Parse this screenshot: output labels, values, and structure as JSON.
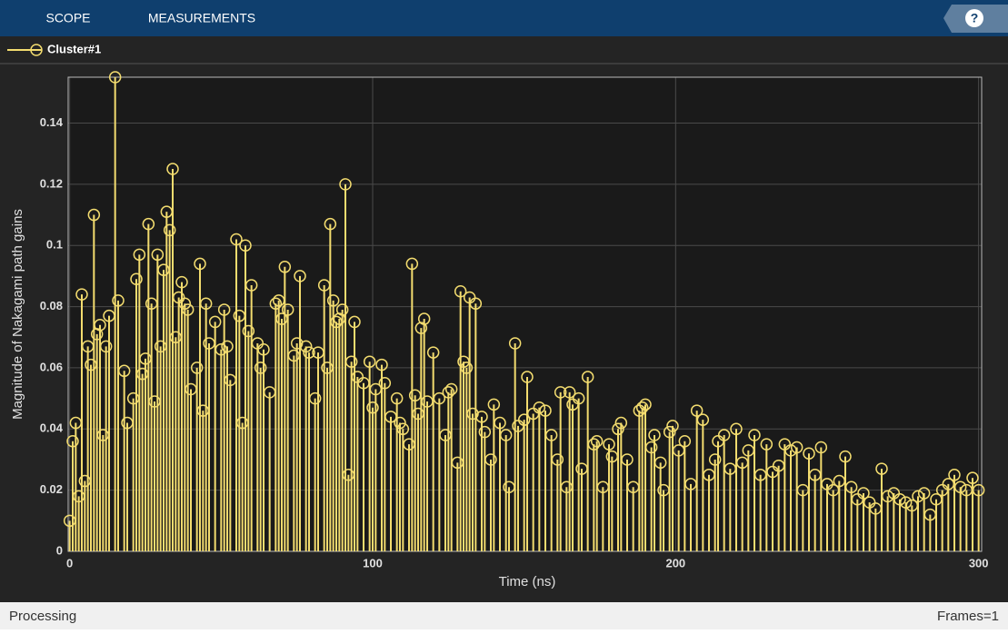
{
  "ui": {
    "tabs": [
      "SCOPE",
      "MEASUREMENTS"
    ],
    "help": "?",
    "status": "Processing",
    "frames": "Frames=1"
  },
  "chart_data": {
    "type": "stem",
    "xlabel": "Time (ns)",
    "ylabel": "Magnitude of Nakagami path gains",
    "xlim": [
      -0.5,
      301
    ],
    "ylim": [
      0,
      0.155
    ],
    "xticks": [
      0,
      100,
      200,
      300
    ],
    "yticks": [
      0,
      0.02,
      0.04,
      0.06,
      0.08,
      0.1,
      0.12,
      0.14
    ],
    "grid": true,
    "legend": "top-left",
    "x": [
      0,
      1,
      2,
      3,
      4,
      5,
      6,
      7,
      8,
      9,
      10,
      11,
      12,
      13,
      15,
      16,
      18,
      19,
      21,
      22,
      23,
      24,
      25,
      26,
      27,
      28,
      29,
      30,
      31,
      32,
      33,
      34,
      35,
      36,
      37,
      38,
      39,
      40,
      42,
      43,
      44,
      45,
      46,
      48,
      50,
      51,
      52,
      53,
      55,
      56,
      57,
      58,
      59,
      60,
      62,
      63,
      64,
      66,
      68,
      69,
      70,
      71,
      72,
      74,
      75,
      76,
      78,
      79,
      81,
      82,
      84,
      85,
      86,
      87,
      88,
      89,
      90,
      91,
      92,
      93,
      94,
      95,
      97,
      99,
      100,
      101,
      103,
      104,
      106,
      108,
      109,
      110,
      112,
      113,
      114,
      115,
      116,
      117,
      118,
      120,
      122,
      124,
      125,
      126,
      128,
      129,
      130,
      131,
      132,
      133,
      134,
      136,
      137,
      139,
      140,
      142,
      144,
      145,
      147,
      148,
      150,
      151,
      153,
      155,
      157,
      159,
      161,
      162,
      164,
      165,
      166,
      168,
      169,
      171,
      173,
      174,
      176,
      178,
      179,
      181,
      182,
      184,
      186,
      188,
      189,
      190,
      192,
      193,
      195,
      196,
      198,
      199,
      201,
      203,
      205,
      207,
      209,
      211,
      213,
      214,
      216,
      218,
      220,
      222,
      224,
      226,
      228,
      230,
      232,
      234,
      236,
      238,
      240,
      242,
      244,
      246,
      248,
      250,
      252,
      254,
      256,
      258,
      260,
      262,
      264,
      266,
      268,
      270,
      272,
      274,
      276,
      278,
      280,
      282,
      284,
      286,
      288,
      290,
      292,
      294,
      296,
      298,
      300
    ],
    "series": [
      {
        "name": "Cluster#1",
        "color": "#f3dc6f",
        "values": [
          0.01,
          0.036,
          0.042,
          0.018,
          0.084,
          0.023,
          0.067,
          0.061,
          0.11,
          0.071,
          0.074,
          0.038,
          0.067,
          0.077,
          0.155,
          0.082,
          0.059,
          0.042,
          0.05,
          0.089,
          0.097,
          0.058,
          0.063,
          0.107,
          0.081,
          0.049,
          0.097,
          0.067,
          0.092,
          0.111,
          0.105,
          0.125,
          0.07,
          0.083,
          0.088,
          0.081,
          0.079,
          0.053,
          0.06,
          0.094,
          0.046,
          0.081,
          0.068,
          0.075,
          0.066,
          0.079,
          0.067,
          0.056,
          0.102,
          0.077,
          0.042,
          0.1,
          0.072,
          0.087,
          0.068,
          0.06,
          0.066,
          0.052,
          0.081,
          0.082,
          0.076,
          0.093,
          0.079,
          0.064,
          0.068,
          0.09,
          0.067,
          0.065,
          0.05,
          0.065,
          0.087,
          0.06,
          0.107,
          0.082,
          0.075,
          0.076,
          0.079,
          0.12,
          0.025,
          0.062,
          0.075,
          0.057,
          0.055,
          0.062,
          0.047,
          0.053,
          0.061,
          0.055,
          0.044,
          0.05,
          0.042,
          0.04,
          0.035,
          0.094,
          0.051,
          0.045,
          0.073,
          0.076,
          0.049,
          0.065,
          0.05,
          0.038,
          0.052,
          0.053,
          0.029,
          0.085,
          0.062,
          0.06,
          0.083,
          0.045,
          0.081,
          0.044,
          0.039,
          0.03,
          0.048,
          0.042,
          0.038,
          0.021,
          0.068,
          0.041,
          0.043,
          0.057,
          0.045,
          0.047,
          0.046,
          0.038,
          0.03,
          0.052,
          0.021,
          0.052,
          0.048,
          0.05,
          0.027,
          0.057,
          0.035,
          0.036,
          0.021,
          0.035,
          0.031,
          0.04,
          0.042,
          0.03,
          0.021,
          0.046,
          0.047,
          0.048,
          0.034,
          0.038,
          0.029,
          0.02,
          0.039,
          0.041,
          0.033,
          0.036,
          0.022,
          0.046,
          0.043,
          0.025,
          0.03,
          0.036,
          0.038,
          0.027,
          0.04,
          0.029,
          0.033,
          0.038,
          0.025,
          0.035,
          0.026,
          0.028,
          0.035,
          0.033,
          0.034,
          0.02,
          0.032,
          0.025,
          0.034,
          0.022,
          0.02,
          0.023,
          0.031,
          0.021,
          0.017,
          0.019,
          0.016,
          0.014,
          0.027,
          0.018,
          0.019,
          0.017,
          0.016,
          0.015,
          0.018,
          0.019,
          0.012,
          0.017,
          0.02,
          0.022,
          0.025,
          0.021,
          0.02,
          0.024,
          0.02
        ]
      }
    ]
  }
}
